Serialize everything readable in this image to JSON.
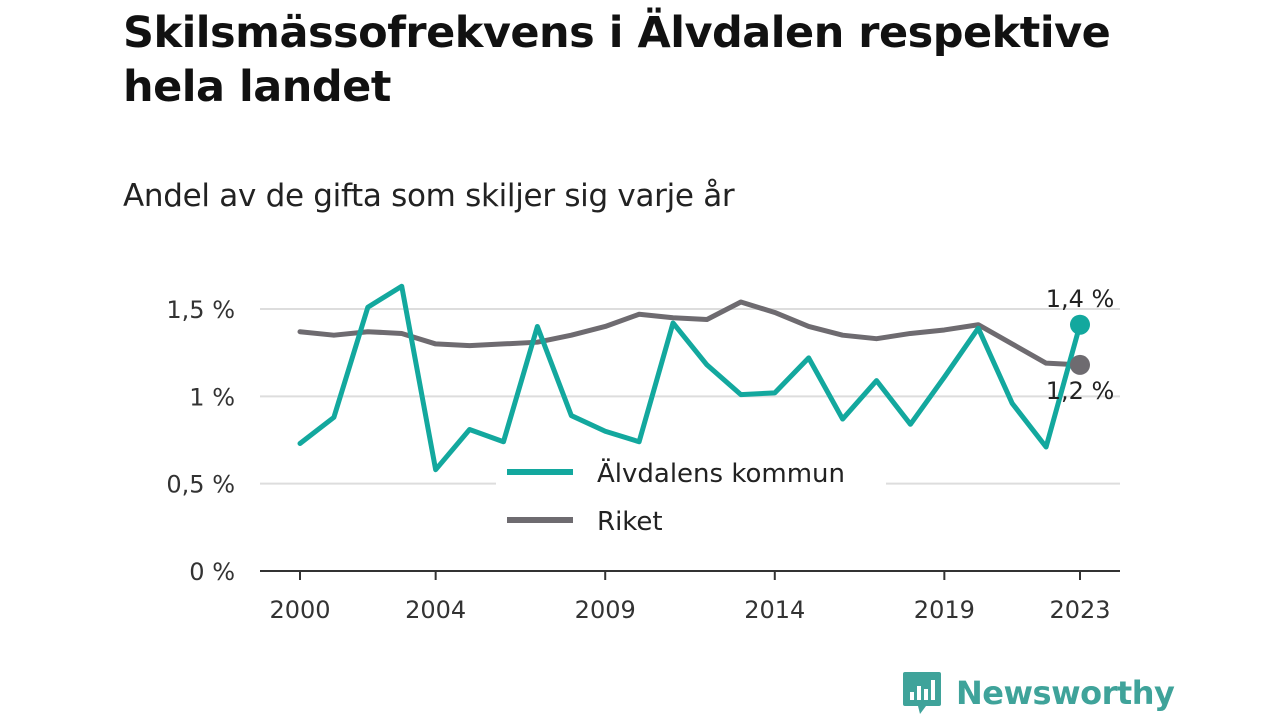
{
  "title": "Skilsmässofrekvens i Älvdalen respektive hela landet",
  "subtitle": "Andel av de gifta som skiljer sig varje år",
  "brand": "Newsworthy",
  "colors": {
    "alvdalen": "#13a89e",
    "riket": "#6e6b70",
    "grid": "#dddddd",
    "axis": "#333333",
    "brand": "#3fa39a"
  },
  "chart_data": {
    "type": "line",
    "x": [
      2000,
      2001,
      2002,
      2003,
      2004,
      2005,
      2006,
      2007,
      2008,
      2009,
      2010,
      2011,
      2012,
      2013,
      2014,
      2015,
      2016,
      2017,
      2018,
      2019,
      2020,
      2021,
      2022,
      2023
    ],
    "x_ticks": [
      2000,
      2004,
      2009,
      2014,
      2019,
      2023
    ],
    "ylim": [
      0,
      1.5
    ],
    "y_ticks": [
      {
        "value": 0,
        "label": "0 %"
      },
      {
        "value": 0.5,
        "label": "0,5 %"
      },
      {
        "value": 1,
        "label": "1 %"
      },
      {
        "value": 1.5,
        "label": "1,5 %"
      }
    ],
    "grid": true,
    "legend_position": "bottom-center",
    "series": [
      {
        "key": "alvdalen",
        "name": "Älvdalens kommun",
        "end_label": "1,4 %",
        "values": [
          0.73,
          0.88,
          1.51,
          1.63,
          0.58,
          0.81,
          0.74,
          1.4,
          0.89,
          0.8,
          0.74,
          1.42,
          1.18,
          1.01,
          1.02,
          1.22,
          0.87,
          1.09,
          0.84,
          1.11,
          1.39,
          0.96,
          0.71,
          1.41
        ]
      },
      {
        "key": "riket",
        "name": "Riket",
        "end_label": "1,2 %",
        "values": [
          1.37,
          1.35,
          1.37,
          1.36,
          1.3,
          1.29,
          1.3,
          1.31,
          1.35,
          1.4,
          1.47,
          1.45,
          1.44,
          1.54,
          1.48,
          1.4,
          1.35,
          1.33,
          1.36,
          1.38,
          1.41,
          1.3,
          1.19,
          1.18
        ]
      }
    ]
  }
}
